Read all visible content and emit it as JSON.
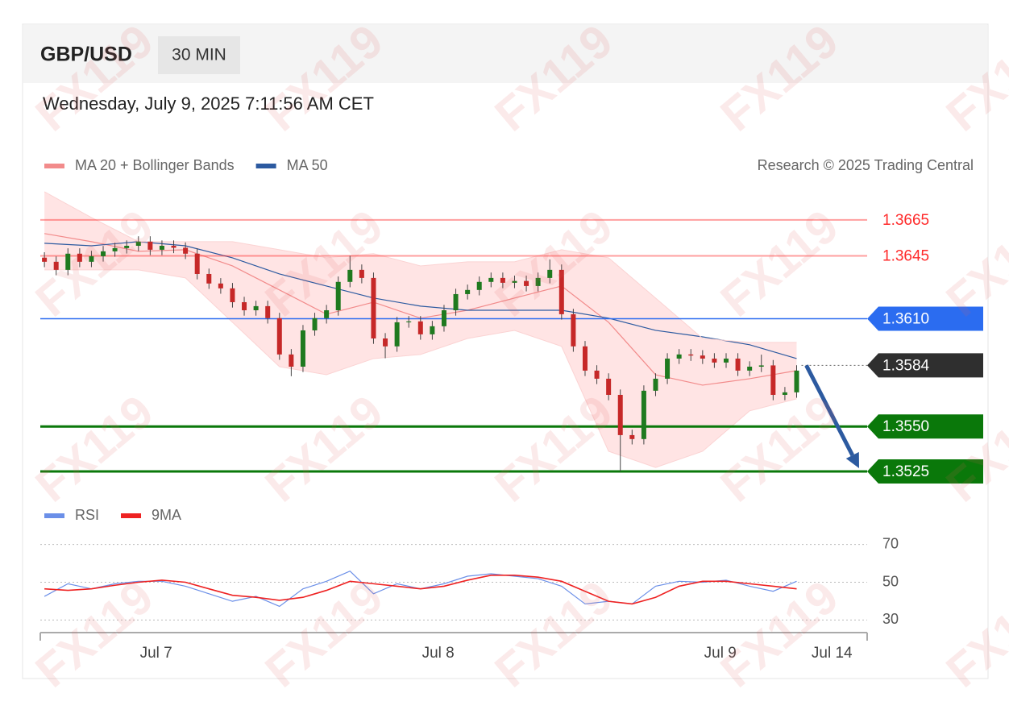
{
  "header": {
    "symbol": "GBP/USD",
    "interval": "30 MIN",
    "timestamp": "Wednesday, July 9, 2025 7:11:56 AM CET",
    "credit": "Research © 2025 Trading Central",
    "watermark": "FX119"
  },
  "chart_data": [
    {
      "type": "candlestick",
      "xlim": [
        -0.7,
        140
      ],
      "ylim": [
        1.3516,
        1.3682
      ],
      "up_color": "#1f7a1f",
      "down_color": "#c62828",
      "x": [
        0,
        2,
        4,
        6,
        8,
        10,
        12,
        14,
        16,
        18,
        20,
        22,
        24,
        26,
        28,
        30,
        32,
        34,
        36,
        38,
        40,
        42,
        44,
        46,
        48,
        50,
        52,
        54,
        56,
        58,
        60,
        62,
        64,
        66,
        68,
        70,
        72,
        74,
        76,
        78,
        80,
        82,
        84,
        86,
        88,
        90,
        92,
        94,
        96,
        98,
        100,
        102,
        104,
        106,
        108,
        110,
        112,
        114,
        116,
        118,
        120,
        122,
        124,
        126,
        128
      ],
      "open": [
        1.3644,
        1.36417,
        1.36372,
        1.36462,
        1.36417,
        1.36448,
        1.36475,
        1.36493,
        1.36506,
        1.36529,
        1.36484,
        1.36506,
        1.36495,
        1.36462,
        1.36349,
        1.36296,
        1.36269,
        1.36192,
        1.36147,
        1.3617,
        1.36103,
        1.35901,
        1.35833,
        1.36035,
        1.36103,
        1.36147,
        1.36305,
        1.36372,
        1.36327,
        1.3599,
        1.35946,
        1.3608,
        1.36085,
        1.36013,
        1.36058,
        1.36147,
        1.36237,
        1.3626,
        1.36305,
        1.36327,
        1.363,
        1.3631,
        1.36282,
        1.36327,
        1.36372,
        1.36125,
        1.35946,
        1.35811,
        1.35766,
        1.35676,
        1.35452,
        1.3543,
        1.35699,
        1.35766,
        1.35878,
        1.35901,
        1.35895,
        1.35878,
        1.35856,
        1.35878,
        1.35811,
        1.35833,
        1.3584,
        1.35676,
        1.3569
      ],
      "high": [
        1.3647,
        1.36447,
        1.36492,
        1.36492,
        1.36478,
        1.36505,
        1.36523,
        1.36536,
        1.36559,
        1.36559,
        1.36536,
        1.36536,
        1.36525,
        1.36492,
        1.36379,
        1.36326,
        1.36299,
        1.36222,
        1.362,
        1.362,
        1.36133,
        1.35931,
        1.36065,
        1.36133,
        1.36177,
        1.36335,
        1.3645,
        1.36402,
        1.36357,
        1.3602,
        1.3611,
        1.36115,
        1.36115,
        1.36088,
        1.36177,
        1.36267,
        1.3629,
        1.36335,
        1.36357,
        1.36357,
        1.3634,
        1.3634,
        1.36357,
        1.3643,
        1.36402,
        1.36155,
        1.35976,
        1.35841,
        1.35796,
        1.35706,
        1.35482,
        1.35729,
        1.35796,
        1.35908,
        1.35931,
        1.35931,
        1.35925,
        1.35908,
        1.35908,
        1.35908,
        1.35863,
        1.359,
        1.3587,
        1.3572,
        1.35841
      ],
      "low": [
        1.36387,
        1.36342,
        1.36342,
        1.36387,
        1.36387,
        1.36418,
        1.36445,
        1.36463,
        1.36476,
        1.36454,
        1.36454,
        1.36465,
        1.36432,
        1.36319,
        1.36266,
        1.36239,
        1.36162,
        1.36117,
        1.36117,
        1.36073,
        1.35871,
        1.3578,
        1.35803,
        1.36005,
        1.36073,
        1.36117,
        1.36275,
        1.36297,
        1.3596,
        1.3588,
        1.35916,
        1.3605,
        1.35983,
        1.35983,
        1.36028,
        1.36117,
        1.36207,
        1.3623,
        1.36275,
        1.3627,
        1.3627,
        1.36252,
        1.36252,
        1.36297,
        1.36095,
        1.35916,
        1.35781,
        1.35736,
        1.35646,
        1.3525,
        1.354,
        1.354,
        1.35669,
        1.35736,
        1.35848,
        1.35865,
        1.35848,
        1.35826,
        1.35826,
        1.35781,
        1.35781,
        1.35803,
        1.35646,
        1.35646,
        1.3566
      ],
      "close": [
        1.36417,
        1.36372,
        1.36462,
        1.36417,
        1.36448,
        1.36475,
        1.36493,
        1.36506,
        1.36529,
        1.36484,
        1.36506,
        1.36495,
        1.36462,
        1.36349,
        1.36296,
        1.36269,
        1.36192,
        1.36147,
        1.3617,
        1.36103,
        1.35901,
        1.35833,
        1.36035,
        1.36103,
        1.36147,
        1.36305,
        1.36372,
        1.36327,
        1.3599,
        1.35946,
        1.3608,
        1.36085,
        1.36013,
        1.36058,
        1.36147,
        1.36237,
        1.3626,
        1.36305,
        1.36327,
        1.363,
        1.3631,
        1.36282,
        1.36327,
        1.36372,
        1.36125,
        1.35946,
        1.35811,
        1.35766,
        1.35676,
        1.35452,
        1.3543,
        1.35699,
        1.35766,
        1.35878,
        1.35901,
        1.35895,
        1.35878,
        1.35856,
        1.35878,
        1.35811,
        1.35833,
        1.3584,
        1.35676,
        1.3569,
        1.35811
      ],
      "series": [
        {
          "name": "MA 20 + Bollinger Bands",
          "color": "#f28b8b",
          "x": [
            0,
            8,
            16,
            24,
            32,
            40,
            48,
            56,
            64,
            72,
            80,
            88,
            96,
            104,
            112,
            120,
            128
          ],
          "values": [
            1.36574,
            1.36529,
            1.36475,
            1.36484,
            1.36394,
            1.3626,
            1.36125,
            1.36192,
            1.36103,
            1.36147,
            1.36215,
            1.36282,
            1.3608,
            1.35788,
            1.3573,
            1.35766,
            1.35811
          ]
        },
        {
          "name": "MA 50",
          "color": "#2c5aa0",
          "x": [
            0,
            8,
            16,
            24,
            32,
            40,
            48,
            56,
            64,
            72,
            80,
            88,
            96,
            104,
            112,
            120,
            128
          ],
          "values": [
            1.3652,
            1.36506,
            1.36529,
            1.36506,
            1.36439,
            1.36349,
            1.36282,
            1.36215,
            1.3617,
            1.36147,
            1.36147,
            1.36147,
            1.36103,
            1.36035,
            1.35999,
            1.35955,
            1.35878
          ]
        },
        {
          "color": "#fbd3d3",
          "x": [
            0,
            8,
            16,
            24,
            32,
            40,
            48,
            56,
            64,
            72,
            80,
            88,
            96,
            104,
            112,
            120,
            128
          ],
          "values": [
            1.36807,
            1.36663,
            1.36529,
            1.36529,
            1.36529,
            1.36484,
            1.36439,
            1.36462,
            1.36394,
            1.36417,
            1.36417,
            1.36484,
            1.36439,
            1.36215,
            1.3599,
            1.35968,
            1.35968
          ]
        },
        {
          "color": "#fbd3d3",
          "x": [
            0,
            8,
            16,
            24,
            32,
            40,
            48,
            56,
            64,
            72,
            80,
            88,
            96,
            104,
            112,
            120,
            128
          ],
          "values": [
            1.36372,
            1.36372,
            1.36372,
            1.36327,
            1.3608,
            1.35833,
            1.35788,
            1.35878,
            1.35901,
            1.3599,
            1.36035,
            1.35946,
            1.35362,
            1.35272,
            1.35362,
            1.35587,
            1.35654
          ]
        }
      ],
      "band_color": "#ffb3b3",
      "levels": [
        {
          "value": 1.3665,
          "kind": "resistance",
          "color": "#ff2a2a"
        },
        {
          "value": 1.3645,
          "kind": "resistance",
          "color": "#ff2a2a"
        },
        {
          "value": 1.361,
          "label": "1.3610",
          "kind": "pivot",
          "color": "#2b6cf0"
        },
        {
          "value": 1.3584,
          "kind": "current",
          "color": "#2f2f2f"
        },
        {
          "value": 1.355,
          "label": "1.3550",
          "kind": "support",
          "color": "#0a780a"
        },
        {
          "value": 1.3525,
          "kind": "support",
          "color": "#0a780a"
        }
      ]
    },
    {
      "type": "line",
      "xlim": [
        -0.7,
        140
      ],
      "ylim": [
        23.3,
        76.7
      ],
      "yticks": [
        30,
        50,
        70
      ],
      "grid": true,
      "xticks": [
        {
          "value": 19,
          "label": "Jul 7"
        },
        {
          "value": 67,
          "label": "Jul 8"
        },
        {
          "value": 115,
          "label": "Jul 9"
        },
        {
          "value": 134,
          "label": "Jul 14"
        }
      ],
      "series": [
        {
          "name": "RSI",
          "color": "#6b8fe8",
          "x": [
            0,
            4,
            8,
            12,
            16,
            20,
            24,
            28,
            32,
            36,
            40,
            44,
            48,
            52,
            56,
            60,
            64,
            68,
            72,
            76,
            80,
            84,
            88,
            92,
            96,
            100,
            104,
            108,
            112,
            116,
            120,
            124,
            128
          ],
          "values": [
            42.5,
            49.2,
            46.5,
            49.2,
            50.5,
            50.5,
            47.9,
            43.9,
            39.9,
            42.5,
            37.2,
            46.5,
            50.5,
            55.9,
            43.9,
            49.2,
            46.5,
            49.2,
            53.2,
            54.5,
            53.2,
            51.9,
            47.9,
            38.5,
            39.9,
            38.5,
            47.9,
            50.5,
            50,
            51.1,
            47.9,
            45.2,
            50.5
          ]
        },
        {
          "name": "9MA",
          "color": "#ee2222",
          "x": [
            0,
            4,
            8,
            12,
            16,
            20,
            24,
            28,
            32,
            36,
            40,
            44,
            48,
            52,
            56,
            60,
            64,
            68,
            72,
            76,
            80,
            84,
            88,
            92,
            96,
            100,
            104,
            108,
            112,
            116,
            120,
            124,
            128
          ],
          "values": [
            46.5,
            45.7,
            46.5,
            48.4,
            50,
            51.1,
            50,
            46.5,
            43.1,
            42,
            40.4,
            42,
            45.7,
            50.5,
            49.2,
            47.9,
            46.5,
            47.9,
            51.1,
            53.7,
            53.7,
            52.7,
            50.5,
            45.2,
            39.9,
            38.5,
            42,
            47.9,
            50.5,
            50.5,
            49.2,
            47.9,
            46.5
          ]
        }
      ]
    }
  ]
}
